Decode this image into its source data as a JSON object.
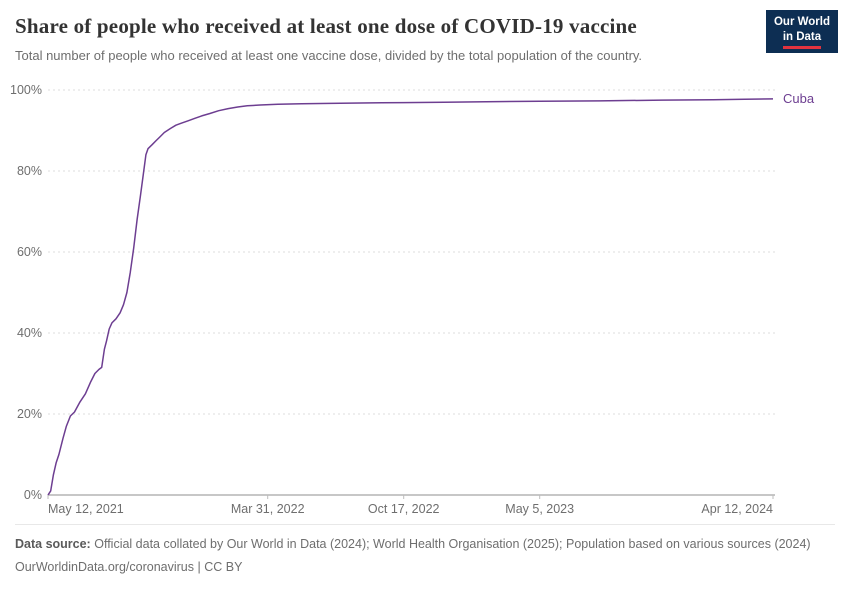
{
  "logo": {
    "line1": "Our World",
    "line2": "in Data"
  },
  "chart_data": {
    "type": "line",
    "title": "Share of people who received at least one dose of COVID-19 vaccine",
    "subtitle": "Total number of people who received at least one vaccine dose, divided by the total population of the country.",
    "ylabel": "",
    "xlabel": "",
    "ylim": [
      0,
      100
    ],
    "grid": "horizontal-dashed",
    "legend_position": "line-end-label",
    "yticks": [
      {
        "value": 0,
        "label": "0%"
      },
      {
        "value": 20,
        "label": "20%"
      },
      {
        "value": 40,
        "label": "40%"
      },
      {
        "value": 60,
        "label": "60%"
      },
      {
        "value": 80,
        "label": "80%"
      },
      {
        "value": 100,
        "label": "100%"
      }
    ],
    "xlim": [
      "2021-05-12",
      "2024-04-15"
    ],
    "xticks": [
      {
        "date": "2021-05-12",
        "label": "May 12, 2021",
        "anchor": "start"
      },
      {
        "date": "2022-03-31",
        "label": "Mar 31, 2022",
        "anchor": "middle"
      },
      {
        "date": "2022-10-17",
        "label": "Oct 17, 2022",
        "anchor": "middle"
      },
      {
        "date": "2023-05-05",
        "label": "May 5, 2023",
        "anchor": "middle"
      },
      {
        "date": "2024-04-12",
        "label": "Apr 12, 2024",
        "anchor": "end"
      }
    ],
    "series": [
      {
        "name": "Cuba",
        "color": "#6D3E91",
        "points": [
          [
            "2021-05-12",
            0
          ],
          [
            "2021-05-16",
            1
          ],
          [
            "2021-05-20",
            5
          ],
          [
            "2021-05-24",
            8
          ],
          [
            "2021-05-28",
            10
          ],
          [
            "2021-06-03",
            14
          ],
          [
            "2021-06-08",
            17
          ],
          [
            "2021-06-14",
            19.5
          ],
          [
            "2021-06-20",
            20.5
          ],
          [
            "2021-06-28",
            23
          ],
          [
            "2021-07-06",
            25
          ],
          [
            "2021-07-14",
            28
          ],
          [
            "2021-07-20",
            30
          ],
          [
            "2021-07-26",
            31
          ],
          [
            "2021-07-30",
            31.5
          ],
          [
            "2021-08-03",
            36
          ],
          [
            "2021-08-06",
            38
          ],
          [
            "2021-08-10",
            41
          ],
          [
            "2021-08-14",
            42.5
          ],
          [
            "2021-08-20",
            43.5
          ],
          [
            "2021-08-26",
            45
          ],
          [
            "2021-08-31",
            47
          ],
          [
            "2021-09-05",
            50
          ],
          [
            "2021-09-10",
            55
          ],
          [
            "2021-09-15",
            61
          ],
          [
            "2021-09-20",
            68
          ],
          [
            "2021-09-25",
            74
          ],
          [
            "2021-09-29",
            79
          ],
          [
            "2021-10-03",
            84
          ],
          [
            "2021-10-06",
            85.5
          ],
          [
            "2021-10-12",
            86.5
          ],
          [
            "2021-10-18",
            87.5
          ],
          [
            "2021-10-24",
            88.5
          ],
          [
            "2021-10-30",
            89.5
          ],
          [
            "2021-11-08",
            90.5
          ],
          [
            "2021-11-16",
            91.3
          ],
          [
            "2021-11-24",
            91.8
          ],
          [
            "2021-12-04",
            92.4
          ],
          [
            "2021-12-14",
            93
          ],
          [
            "2021-12-24",
            93.6
          ],
          [
            "2022-01-05",
            94.2
          ],
          [
            "2022-01-18",
            94.9
          ],
          [
            "2022-02-01",
            95.4
          ],
          [
            "2022-02-15",
            95.8
          ],
          [
            "2022-03-01",
            96.1
          ],
          [
            "2022-03-20",
            96.3
          ],
          [
            "2022-04-15",
            96.5
          ],
          [
            "2022-05-20",
            96.6
          ],
          [
            "2022-07-01",
            96.7
          ],
          [
            "2022-08-15",
            96.8
          ],
          [
            "2022-10-17",
            96.9
          ],
          [
            "2022-12-15",
            97.0
          ],
          [
            "2023-02-15",
            97.1
          ],
          [
            "2023-05-05",
            97.2
          ],
          [
            "2023-08-01",
            97.3
          ],
          [
            "2023-11-01",
            97.5
          ],
          [
            "2024-01-15",
            97.6
          ],
          [
            "2024-03-01",
            97.7
          ],
          [
            "2024-04-12",
            97.8
          ]
        ]
      }
    ]
  },
  "footer": {
    "data_source_label": "Data source:",
    "data_source_text": "Official data collated by Our World in Data (2024); World Health Organisation (2025); Population based on various sources (2024)",
    "credit": "OurWorldinData.org/coronavirus | CC BY"
  }
}
